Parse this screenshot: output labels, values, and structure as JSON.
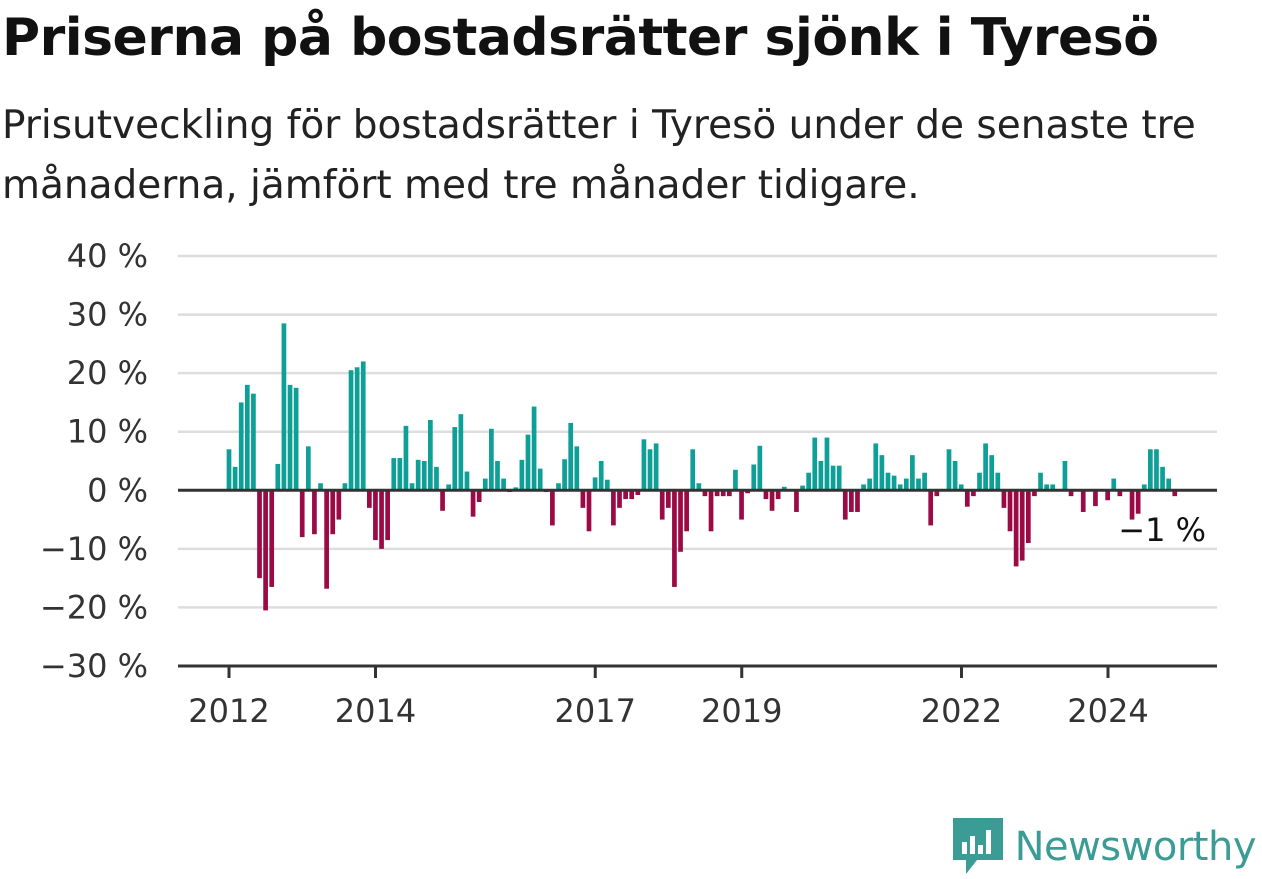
{
  "header": {
    "title": "Priserna på bostadsrätter sjönk i Tyresö",
    "subtitle": "Prisutveckling för bostadsrätter i Tyresö under de senaste tre månaderna, jämfört med tre månader tidigare."
  },
  "brand": {
    "name": "Newsworthy"
  },
  "colors": {
    "positive": "#0e9f97",
    "negative": "#9c0a45",
    "grid": "#dddddd",
    "axis": "#333333"
  },
  "chart_data": {
    "type": "bar",
    "ylim": [
      -30,
      40
    ],
    "y_ticks": [
      "−30 %",
      "−20 %",
      "−10 %",
      "0 %",
      "10 %",
      "20 %",
      "30 %",
      "40 %"
    ],
    "x_ticks": [
      {
        "label": "2012",
        "value": 2012
      },
      {
        "label": "2014",
        "value": 2014
      },
      {
        "label": "2017",
        "value": 2017
      },
      {
        "label": "2019",
        "value": 2019
      },
      {
        "label": "2022",
        "value": 2022
      },
      {
        "label": "2024",
        "value": 2024
      }
    ],
    "x_start": 2012.0,
    "x_step": 0.0833,
    "last_value_label": "−1 %",
    "values": [
      7,
      4,
      15,
      18,
      16.5,
      -15,
      -20.5,
      -16.5,
      4.5,
      28.5,
      18,
      17.5,
      -8,
      7.5,
      -7.5,
      1.2,
      -16.8,
      -7.5,
      -5,
      1.2,
      20.5,
      21,
      22,
      -3,
      -8.5,
      -10,
      -8.5,
      5.5,
      5.5,
      11,
      1.2,
      5.2,
      5,
      12,
      4,
      -3.5,
      1,
      10.8,
      13,
      3.2,
      -4.5,
      -2,
      2,
      10.5,
      5,
      2,
      -0.3,
      0.5,
      5.2,
      9.5,
      14.3,
      3.7,
      -0.3,
      -6,
      1.2,
      5.3,
      11.5,
      7.5,
      -3,
      -7,
      2.2,
      5,
      1.8,
      -6,
      -3,
      -1.5,
      -1.5,
      -0.8,
      8.7,
      7,
      8,
      -5,
      -3,
      -16.5,
      -10.5,
      -7,
      7,
      1.2,
      -1,
      -7,
      -1,
      -1,
      -1,
      3.5,
      -5,
      -0.5,
      4.4,
      7.6,
      -1.5,
      -3.5,
      -1.5,
      0.6,
      0,
      -3.7,
      0.8,
      3,
      9,
      5,
      9,
      4.2,
      4.2,
      -5,
      -3.7,
      -3.7,
      1,
      2,
      8,
      6,
      3,
      2.5,
      1,
      2,
      6,
      2,
      3,
      -6,
      -1,
      0,
      7,
      5,
      1,
      -2.8,
      -1,
      3,
      8,
      6,
      3,
      -3,
      -7,
      -13,
      -12,
      -9,
      -1,
      3,
      1,
      1,
      0,
      5,
      -1,
      0,
      -3.7,
      0,
      -2.7,
      0,
      -1.7,
      2,
      -1,
      0,
      -5,
      -4,
      1,
      7,
      7,
      4,
      2,
      -1
    ]
  }
}
